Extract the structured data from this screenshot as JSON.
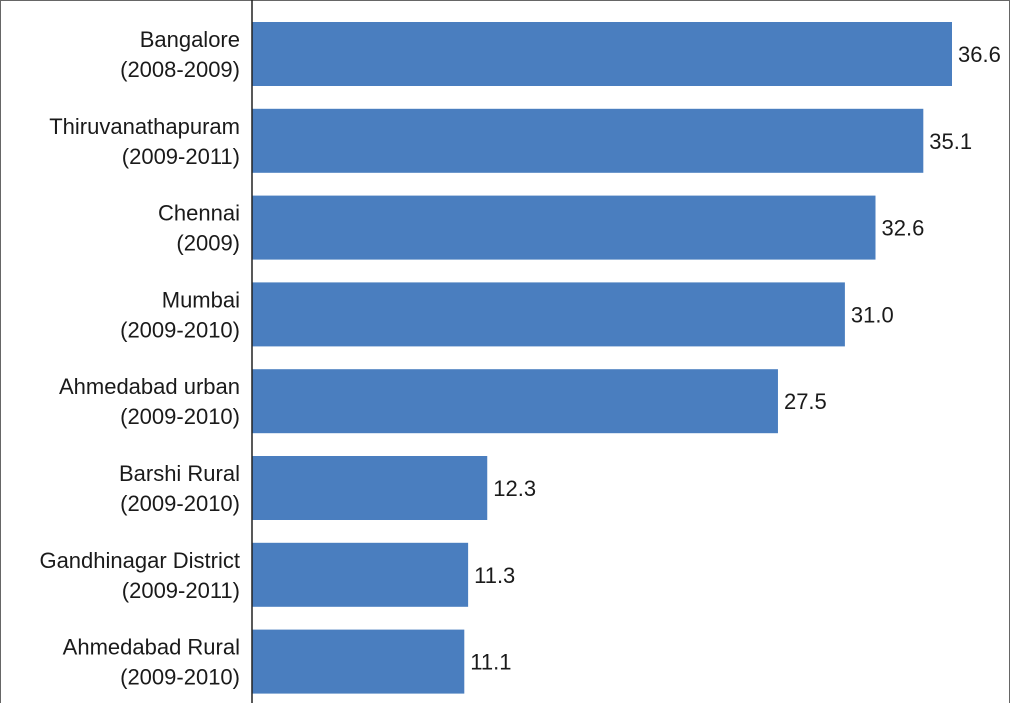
{
  "chart_data": {
    "type": "bar",
    "orientation": "horizontal",
    "title": "",
    "xlabel": "",
    "ylabel": "",
    "categories": [
      [
        "Bangalore",
        "(2008-2009)"
      ],
      [
        "Thiruvanathapuram",
        "(2009-2011)"
      ],
      [
        "Chennai",
        "(2009)"
      ],
      [
        "Mumbai",
        "(2009-2010)"
      ],
      [
        "Ahmedabad urban",
        "(2009-2010)"
      ],
      [
        "Barshi Rural",
        "(2009-2010)"
      ],
      [
        "Gandhinagar District",
        "(2009-2011)"
      ],
      [
        "Ahmedabad Rural",
        "(2009-2010)"
      ]
    ],
    "values": [
      36.6,
      35.1,
      32.6,
      31.0,
      27.5,
      12.3,
      11.3,
      11.1
    ],
    "value_labels": [
      "36.6",
      "35.1",
      "32.6",
      "31.0",
      "27.5",
      "12.3",
      "11.3",
      "11.1"
    ],
    "xlim": [
      0,
      36.6
    ],
    "grid": false,
    "legend": "none",
    "colors": {
      "bar": "#4a7ebf",
      "axis": "#222222",
      "text": "#1a1a1a"
    }
  }
}
